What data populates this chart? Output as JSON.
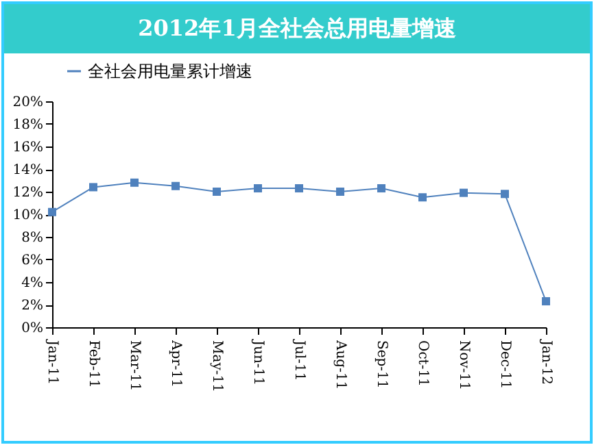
{
  "chart_data": {
    "type": "line",
    "title": "2012年1月全社会总用电量增速",
    "categories": [
      "Jan-11",
      "Feb-11",
      "Mar-11",
      "Apr-11",
      "May-11",
      "Jun-11",
      "Jul-11",
      "Aug-11",
      "Sep-11",
      "Oct-11",
      "Nov-11",
      "Dec-11",
      "Jan-12"
    ],
    "series": [
      {
        "name": "全社会用电量累计增速",
        "color": "#4f81bd",
        "values": [
          10.2,
          12.4,
          12.8,
          12.5,
          12.0,
          12.3,
          12.3,
          12.0,
          12.3,
          11.5,
          11.9,
          11.8,
          2.3
        ]
      }
    ],
    "ylim": [
      0,
      20
    ],
    "yticks": [
      {
        "value": 0,
        "label": "0%"
      },
      {
        "value": 2,
        "label": "2%"
      },
      {
        "value": 4,
        "label": "4%"
      },
      {
        "value": 6,
        "label": "6%"
      },
      {
        "value": 8,
        "label": "8%"
      },
      {
        "value": 10,
        "label": "10%"
      },
      {
        "value": 12,
        "label": "12%"
      },
      {
        "value": 14,
        "label": "14%"
      },
      {
        "value": 16,
        "label": "16%"
      },
      {
        "value": 18,
        "label": "18%"
      },
      {
        "value": 20,
        "label": "20%"
      }
    ],
    "grid": false,
    "legend": "top left",
    "marker": "square",
    "line_style": "solid"
  }
}
